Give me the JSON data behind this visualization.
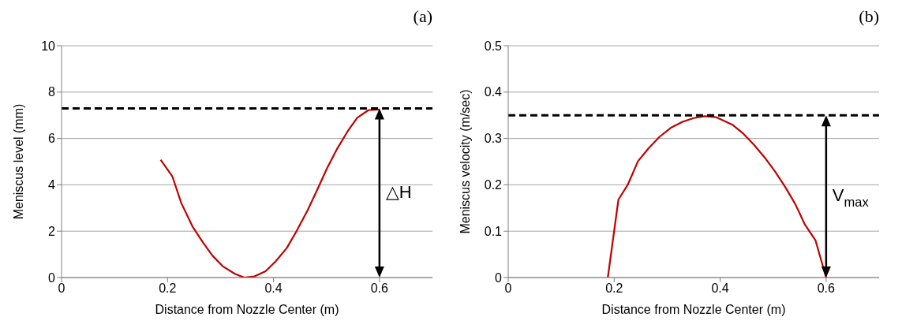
{
  "chart_data": [
    {
      "type": "line",
      "title": "(a)",
      "xlabel": "Distance from Nozzle Center (m)",
      "ylabel": "Meniscus level (mm)",
      "xlim": [
        0,
        0.7
      ],
      "xticks": [
        0,
        0.2,
        0.4,
        0.6
      ],
      "ylim": [
        0,
        10
      ],
      "yticks": [
        0,
        2,
        4,
        6,
        8,
        10
      ],
      "grid": "y",
      "marker": "none",
      "line_style": "solid",
      "series": [
        {
          "color": "#c00000",
          "x": [
            0.187,
            0.209,
            0.226,
            0.247,
            0.267,
            0.285,
            0.304,
            0.327,
            0.345,
            0.364,
            0.385,
            0.404,
            0.425,
            0.443,
            0.464,
            0.483,
            0.501,
            0.52,
            0.54,
            0.558,
            0.579,
            0.6
          ],
          "values": [
            5.08,
            4.37,
            3.21,
            2.21,
            1.51,
            0.94,
            0.49,
            0.16,
            0,
            0.05,
            0.27,
            0.7,
            1.27,
            1.98,
            2.88,
            3.81,
            4.71,
            5.55,
            6.31,
            6.89,
            7.22,
            7.25
          ]
        }
      ],
      "ref_lines": [
        {
          "axis": "y",
          "value": 7.3,
          "color": "#000000",
          "line_style": "dashed"
        }
      ],
      "annotations": [
        "△H"
      ]
    },
    {
      "type": "line",
      "title": "(b)",
      "xlabel": "Distance from Nozzle Center (m)",
      "ylabel": "Meniscus velocity (m/sec)",
      "xlim": [
        0,
        0.7
      ],
      "xticks": [
        0,
        0.2,
        0.4,
        0.6
      ],
      "ylim": [
        0,
        0.5
      ],
      "yticks": [
        0,
        0.1,
        0.2,
        0.3,
        0.4,
        0.5
      ],
      "grid": "y",
      "marker": "none",
      "line_style": "solid",
      "series": [
        {
          "color": "#c00000",
          "x": [
            0.188,
            0.208,
            0.226,
            0.245,
            0.265,
            0.286,
            0.307,
            0.329,
            0.35,
            0.371,
            0.392,
            0.424,
            0.444,
            0.464,
            0.484,
            0.504,
            0.523,
            0.542,
            0.56,
            0.58,
            0.6
          ],
          "values": [
            0,
            0.168,
            0.201,
            0.251,
            0.279,
            0.304,
            0.323,
            0.336,
            0.344,
            0.348,
            0.346,
            0.329,
            0.31,
            0.286,
            0.259,
            0.228,
            0.195,
            0.158,
            0.114,
            0.08,
            0
          ]
        }
      ],
      "ref_lines": [
        {
          "axis": "y",
          "value": 0.35,
          "color": "#000000",
          "line_style": "dashed"
        }
      ],
      "annotations": [
        "V$_{max}$"
      ]
    }
  ]
}
